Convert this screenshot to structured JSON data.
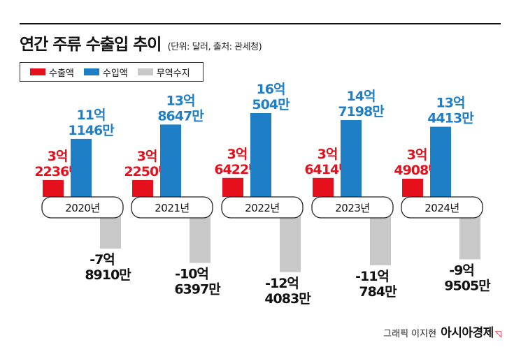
{
  "title": "연간 주류 수출입 추이",
  "subtitle": "(단위: 달러, 출처: 관세청)",
  "legend": [
    {
      "label": "수출액",
      "color": "#e5101c"
    },
    {
      "label": "수입액",
      "color": "#1f7fc6"
    },
    {
      "label": "무역수지",
      "color": "#c8c8c8"
    }
  ],
  "credit": {
    "name": "그래픽 이지현",
    "brand": "아시아경제"
  },
  "chart_data": {
    "type": "bar",
    "categories": [
      "2020년",
      "2021년",
      "2022년",
      "2023년",
      "2024년"
    ],
    "series": [
      {
        "name": "수출액",
        "color": "#e5101c",
        "values": [
          322360000,
          322500000,
          364220000,
          364140000,
          349080000
        ],
        "labels": [
          [
            "3억",
            "2236만"
          ],
          [
            "3억",
            "2250만"
          ],
          [
            "3억",
            "6422만"
          ],
          [
            "3억",
            "6414만"
          ],
          [
            "3억",
            "4908만"
          ]
        ]
      },
      {
        "name": "수입액",
        "color": "#1f7fc6",
        "values": [
          1111460000,
          1386470000,
          1605040000,
          1471980000,
          1344130000
        ],
        "labels": [
          [
            "11억",
            "1146만"
          ],
          [
            "13억",
            "8647만"
          ],
          [
            "16억",
            "504만"
          ],
          [
            "14억",
            "7198만"
          ],
          [
            "13억",
            "4413만"
          ]
        ]
      },
      {
        "name": "무역수지",
        "color": "#c8c8c8",
        "values": [
          -789100000,
          -1063970000,
          -1240830000,
          -1107840000,
          -995050000
        ],
        "labels": [
          [
            "-7억",
            "8910만"
          ],
          [
            "-10억",
            "6397만"
          ],
          [
            "-12억",
            "4083만"
          ],
          [
            "-11억",
            "784만"
          ],
          [
            "-9억",
            "9505만"
          ]
        ]
      }
    ]
  }
}
